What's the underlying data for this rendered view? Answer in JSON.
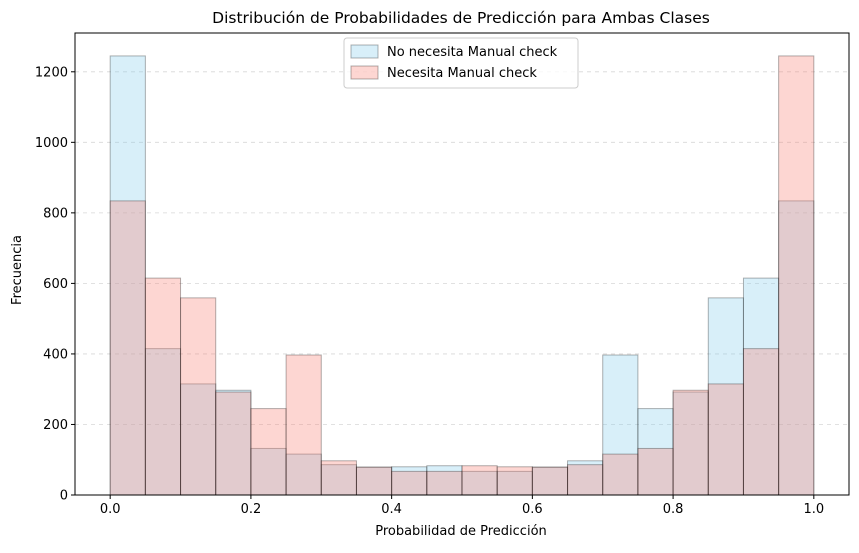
{
  "chart_data": {
    "type": "bar",
    "title": "Distribución de Probabilidades de Predicción para Ambas Clases",
    "xlabel": "Probabilidad de Predicción",
    "ylabel": "Frecuencia",
    "xlim": [
      -0.05,
      1.05
    ],
    "ylim": [
      0,
      1310
    ],
    "x_ticks": [
      0.0,
      0.2,
      0.4,
      0.6,
      0.8,
      1.0
    ],
    "x_tick_labels": [
      "0.0",
      "0.2",
      "0.4",
      "0.6",
      "0.8",
      "1.0"
    ],
    "y_ticks": [
      0,
      200,
      400,
      600,
      800,
      1000,
      1200
    ],
    "y_tick_labels": [
      "0",
      "200",
      "400",
      "600",
      "800",
      "1000",
      "1200"
    ],
    "grid": "y dashed",
    "legend_position": "upper-center",
    "bin_edges": [
      0.0,
      0.05,
      0.1,
      0.15,
      0.2,
      0.25,
      0.3,
      0.35,
      0.4,
      0.45,
      0.5,
      0.55,
      0.6,
      0.65,
      0.7,
      0.75,
      0.8,
      0.85,
      0.9,
      0.95,
      1.0
    ],
    "series": [
      {
        "name": "No necesita Manual check",
        "color": "#87ceeb",
        "values": [
          1245,
          415,
          315,
          297,
          132,
          116,
          86,
          79,
          80,
          83,
          67,
          67,
          79,
          97,
          397,
          245,
          292,
          559,
          615,
          834
        ]
      },
      {
        "name": "Necesita Manual check",
        "color": "#fa8072",
        "values": [
          834,
          615,
          559,
          292,
          245,
          397,
          97,
          79,
          67,
          67,
          83,
          80,
          79,
          86,
          116,
          132,
          297,
          315,
          415,
          1245
        ]
      }
    ]
  }
}
